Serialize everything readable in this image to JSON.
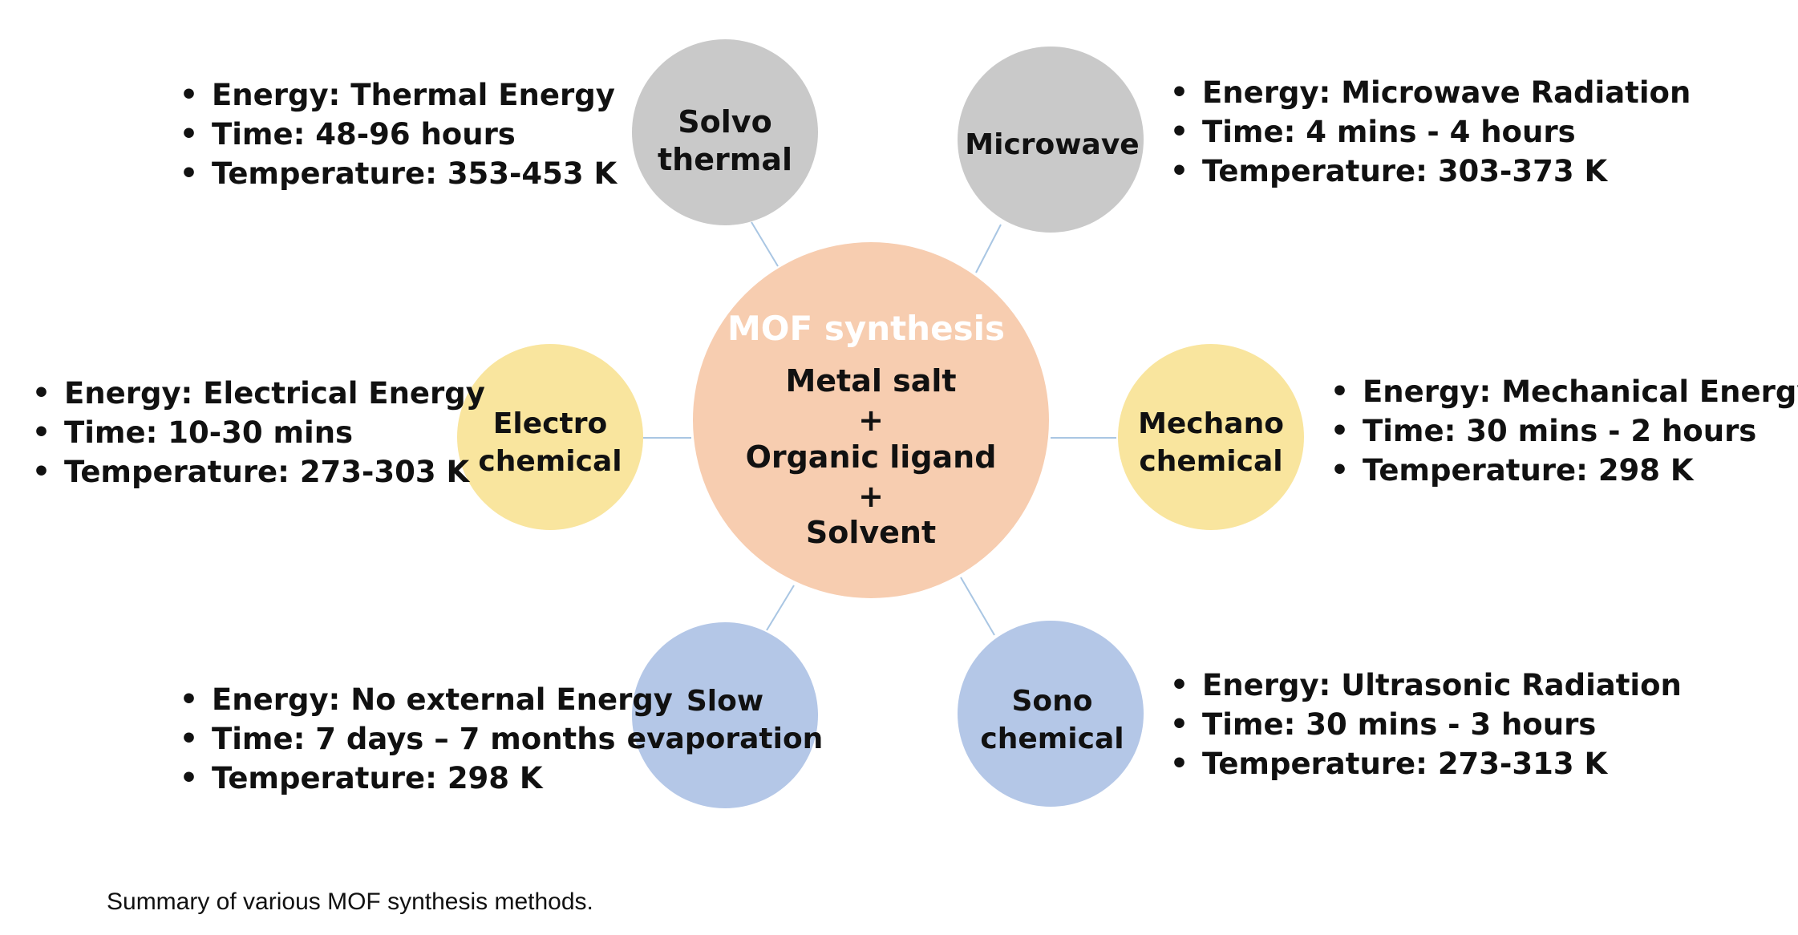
{
  "center": {
    "title": "MOF synthesis",
    "lines": [
      "Metal salt",
      "+",
      "Organic ligand",
      "+",
      "Solvent"
    ],
    "color": "#f7cdb0"
  },
  "methods": {
    "solvothermal": {
      "label_lines": [
        "Solvo",
        "thermal"
      ],
      "color": "#c9c9c9",
      "bullets": [
        "Energy: Thermal Energy",
        "Time: 48-96 hours",
        "Temperature: 353-453 K"
      ]
    },
    "microwave": {
      "label_lines": [
        "Microwave"
      ],
      "color": "#c9c9c9",
      "bullets": [
        "Energy: Microwave Radiation",
        "Time: 4 mins - 4 hours",
        "Temperature: 303-373 K"
      ]
    },
    "electrochemical": {
      "label_lines": [
        "Electro",
        "chemical"
      ],
      "color": "#f9e59e",
      "bullets": [
        "Energy: Electrical Energy",
        "Time: 10-30 mins",
        "Temperature: 273-303 K"
      ]
    },
    "mechanochemical": {
      "label_lines": [
        "Mechano",
        "chemical"
      ],
      "color": "#f9e59e",
      "bullets": [
        "Energy: Mechanical Energy",
        "Time: 30 mins - 2 hours",
        "Temperature: 298 K"
      ]
    },
    "slow_evaporation": {
      "label_lines": [
        "Slow",
        "evaporation"
      ],
      "color": "#b4c7e7",
      "bullets": [
        "Energy: No external Energy",
        "Time: 7 days – 7 months",
        "Temperature: 298 K"
      ]
    },
    "sonochemical": {
      "label_lines": [
        "Sono",
        "chemical"
      ],
      "color": "#b4c7e7",
      "bullets": [
        "Energy: Ultrasonic Radiation",
        "Time: 30 mins - 3 hours",
        "Temperature: 273-313 K"
      ]
    }
  },
  "bullet_glyph": "•",
  "connector_color": "#a9c6e3",
  "caption": "Summary of various MOF synthesis methods."
}
